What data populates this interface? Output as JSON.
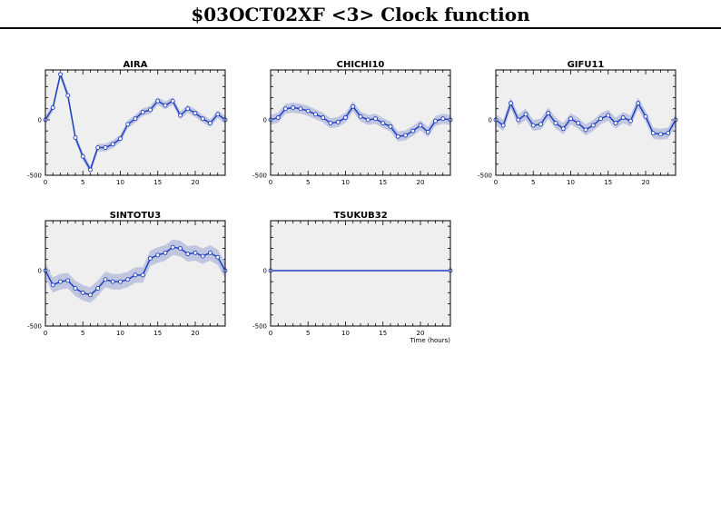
{
  "page": {
    "title": "$03OCT02XF <3>  Clock function"
  },
  "colors": {
    "plot_bg": "#efefef",
    "line": "#1e3fbf",
    "band": "#c0c6e0",
    "marker_fill": "#ffffff"
  },
  "chart_data": [
    {
      "type": "line",
      "title": "AIRA",
      "xlim": [
        0,
        24
      ],
      "ylim": [
        -500,
        450
      ],
      "xticks": [
        0,
        5,
        10,
        15,
        20
      ],
      "yticks": [
        0,
        -500
      ],
      "xlabel": "",
      "series": [
        {
          "x": [
            0,
            1,
            2,
            3,
            4,
            5,
            6,
            7,
            8,
            9,
            10,
            11,
            12,
            13,
            14,
            15,
            16,
            17,
            18,
            19,
            20,
            21,
            22,
            23,
            24
          ],
          "y": [
            0,
            110,
            410,
            220,
            -160,
            -330,
            -450,
            -250,
            -250,
            -220,
            -170,
            -40,
            10,
            70,
            90,
            170,
            130,
            170,
            40,
            100,
            60,
            10,
            -30,
            50,
            0
          ],
          "band": 35
        }
      ]
    },
    {
      "type": "line",
      "title": "CHICHI10",
      "xlim": [
        0,
        24
      ],
      "ylim": [
        -500,
        450
      ],
      "xticks": [
        0,
        5,
        10,
        15,
        20
      ],
      "yticks": [
        0,
        -500
      ],
      "xlabel": "",
      "series": [
        {
          "x": [
            0,
            1,
            2,
            3,
            4,
            5,
            6,
            7,
            8,
            9,
            10,
            11,
            12,
            13,
            14,
            15,
            16,
            17,
            18,
            19,
            20,
            21,
            22,
            23,
            24
          ],
          "y": [
            0,
            20,
            100,
            110,
            100,
            80,
            50,
            20,
            -30,
            -20,
            20,
            120,
            30,
            0,
            10,
            -30,
            -60,
            -150,
            -140,
            -100,
            -50,
            -110,
            -10,
            10,
            0
          ],
          "band": 45
        }
      ]
    },
    {
      "type": "line",
      "title": "GIFU11",
      "xlim": [
        0,
        24
      ],
      "ylim": [
        -500,
        450
      ],
      "xticks": [
        0,
        5,
        10,
        15,
        20
      ],
      "yticks": [
        0,
        -500
      ],
      "xlabel": "",
      "series": [
        {
          "x": [
            0,
            1,
            2,
            3,
            4,
            5,
            6,
            7,
            8,
            9,
            10,
            11,
            12,
            13,
            14,
            15,
            16,
            17,
            18,
            19,
            20,
            21,
            22,
            23,
            24
          ],
          "y": [
            0,
            -50,
            150,
            0,
            50,
            -50,
            -40,
            60,
            -30,
            -80,
            10,
            -30,
            -90,
            -50,
            10,
            40,
            -30,
            20,
            -10,
            150,
            30,
            -120,
            -130,
            -120,
            0
          ],
          "band": 50
        }
      ]
    },
    {
      "type": "line",
      "title": "SINTOTU3",
      "xlim": [
        0,
        24
      ],
      "ylim": [
        -500,
        450
      ],
      "xticks": [
        0,
        5,
        10,
        15,
        20
      ],
      "yticks": [
        0,
        -500
      ],
      "xlabel": "",
      "series": [
        {
          "x": [
            0,
            1,
            2,
            3,
            4,
            5,
            6,
            7,
            8,
            9,
            10,
            11,
            12,
            13,
            14,
            15,
            16,
            17,
            18,
            19,
            20,
            21,
            22,
            23,
            24
          ],
          "y": [
            0,
            -130,
            -100,
            -90,
            -160,
            -200,
            -220,
            -160,
            -80,
            -100,
            -100,
            -80,
            -40,
            -40,
            110,
            140,
            160,
            210,
            200,
            150,
            160,
            130,
            160,
            120,
            0
          ],
          "band": 70
        }
      ]
    },
    {
      "type": "line",
      "title": "TSUKUB32",
      "xlim": [
        0,
        24
      ],
      "ylim": [
        -500,
        450
      ],
      "xticks": [
        0,
        5,
        10,
        15,
        20
      ],
      "yticks": [
        0,
        -500
      ],
      "xlabel": "Time (hours)",
      "series": [
        {
          "x": [
            0,
            24
          ],
          "y": [
            0,
            0
          ],
          "band": 0
        }
      ]
    }
  ]
}
